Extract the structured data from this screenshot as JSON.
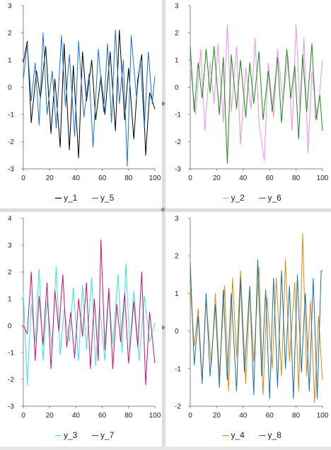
{
  "window": {
    "background": "#e6e6e6",
    "splitter_color": "#dedede",
    "grip_glyph": "◆"
  },
  "chart_data": [
    {
      "type": "line",
      "x": {
        "start": 0,
        "end": 100
      },
      "xlim": [
        0,
        100
      ],
      "ylim": [
        -3,
        3
      ],
      "xticks": [
        0,
        20,
        40,
        60,
        80,
        100
      ],
      "yticks": [
        -3,
        -2,
        -1,
        0,
        1,
        2,
        3
      ],
      "grid": false,
      "legend_position": "bottom",
      "series": [
        {
          "name": "y_1",
          "color": "#000000",
          "peaks": [
            [
              0,
              0.9
            ],
            [
              3,
              1.7
            ],
            [
              6,
              -1.3
            ],
            [
              10,
              0.6
            ],
            [
              13,
              -0.4
            ],
            [
              17,
              1.5
            ],
            [
              21,
              -1.7
            ],
            [
              24,
              0.3
            ],
            [
              28,
              -2.2
            ],
            [
              31,
              1.6
            ],
            [
              35,
              -2.3
            ],
            [
              38,
              0.8
            ],
            [
              42,
              -2.6
            ],
            [
              45,
              1.3
            ],
            [
              48,
              -0.5
            ],
            [
              52,
              1.0
            ],
            [
              55,
              -1.2
            ],
            [
              59,
              0.4
            ],
            [
              62,
              -1.0
            ],
            [
              66,
              1.3
            ],
            [
              70,
              -1.6
            ],
            [
              73,
              2.1
            ],
            [
              77,
              -1.2
            ],
            [
              80,
              0.7
            ],
            [
              84,
              -1.9
            ],
            [
              87,
              0.3
            ],
            [
              90,
              1.2
            ],
            [
              93,
              -2.5
            ],
            [
              96,
              -0.2
            ],
            [
              100,
              -0.8
            ]
          ]
        },
        {
          "name": "y_5",
          "color": "#1a73d2",
          "peaks": [
            [
              0,
              0.3
            ],
            [
              3,
              1.6
            ],
            [
              6,
              -0.5
            ],
            [
              9,
              0.9
            ],
            [
              12,
              -1.4
            ],
            [
              15,
              2.0
            ],
            [
              18,
              -1.0
            ],
            [
              22,
              0.6
            ],
            [
              25,
              -1.5
            ],
            [
              29,
              1.9
            ],
            [
              32,
              -0.7
            ],
            [
              35,
              1.2
            ],
            [
              39,
              -1.8
            ],
            [
              42,
              1.7
            ],
            [
              46,
              -1.1
            ],
            [
              50,
              0.5
            ],
            [
              53,
              -2.2
            ],
            [
              57,
              1.4
            ],
            [
              61,
              -0.9
            ],
            [
              64,
              1.6
            ],
            [
              67,
              -1.3
            ],
            [
              70,
              2.1
            ],
            [
              73,
              -0.6
            ],
            [
              76,
              1.0
            ],
            [
              79,
              -2.9
            ],
            [
              82,
              1.9
            ],
            [
              86,
              -0.4
            ],
            [
              89,
              1.0
            ],
            [
              92,
              -1.5
            ],
            [
              95,
              1.3
            ],
            [
              98,
              -0.6
            ],
            [
              100,
              0.4
            ]
          ]
        }
      ]
    },
    {
      "type": "line",
      "x": {
        "start": 0,
        "end": 100
      },
      "xlim": [
        0,
        100
      ],
      "ylim": [
        -3,
        3
      ],
      "xticks": [
        0,
        20,
        40,
        60,
        80,
        100
      ],
      "yticks": [
        -3,
        -2,
        -1,
        0,
        1,
        2,
        3
      ],
      "grid": false,
      "legend_position": "bottom",
      "series": [
        {
          "name": "y_2",
          "color": "#ee90e8",
          "peaks": [
            [
              0,
              0.8
            ],
            [
              4,
              -1.0
            ],
            [
              8,
              1.4
            ],
            [
              11,
              -1.6
            ],
            [
              15,
              0.9
            ],
            [
              18,
              -0.6
            ],
            [
              21,
              1.6
            ],
            [
              25,
              -1.3
            ],
            [
              28,
              2.3
            ],
            [
              31,
              -0.9
            ],
            [
              35,
              1.5
            ],
            [
              38,
              -2.1
            ],
            [
              42,
              0.7
            ],
            [
              46,
              -0.8
            ],
            [
              49,
              1.8
            ],
            [
              52,
              -1.3
            ],
            [
              56,
              -2.7
            ],
            [
              59,
              0.9
            ],
            [
              63,
              -1.1
            ],
            [
              66,
              1.4
            ],
            [
              70,
              -0.5
            ],
            [
              74,
              1.1
            ],
            [
              77,
              -1.6
            ],
            [
              80,
              2.3
            ],
            [
              83,
              -0.8
            ],
            [
              86,
              1.8
            ],
            [
              89,
              -2.4
            ],
            [
              92,
              0.6
            ],
            [
              96,
              -1.2
            ],
            [
              100,
              1.0
            ]
          ]
        },
        {
          "name": "y_6",
          "color": "#1a8a1a",
          "peaks": [
            [
              0,
              1.5
            ],
            [
              3,
              -0.9
            ],
            [
              6,
              0.9
            ],
            [
              9,
              -0.4
            ],
            [
              12,
              1.4
            ],
            [
              15,
              -0.2
            ],
            [
              18,
              1.5
            ],
            [
              22,
              -1.0
            ],
            [
              25,
              1.1
            ],
            [
              28,
              -2.8
            ],
            [
              31,
              1.2
            ],
            [
              35,
              -0.8
            ],
            [
              38,
              1.0
            ],
            [
              42,
              -1.1
            ],
            [
              45,
              0.9
            ],
            [
              48,
              -0.6
            ],
            [
              52,
              1.3
            ],
            [
              55,
              -1.2
            ],
            [
              59,
              0.6
            ],
            [
              62,
              -0.9
            ],
            [
              66,
              1.1
            ],
            [
              69,
              -1.3
            ],
            [
              73,
              1.4
            ],
            [
              76,
              -0.4
            ],
            [
              79,
              0.8
            ],
            [
              82,
              -1.9
            ],
            [
              85,
              1.2
            ],
            [
              88,
              -0.9
            ],
            [
              92,
              1.6
            ],
            [
              95,
              -1.2
            ],
            [
              98,
              -0.3
            ],
            [
              100,
              -1.6
            ]
          ]
        }
      ]
    },
    {
      "type": "line",
      "x": {
        "start": 0,
        "end": 100
      },
      "xlim": [
        0,
        100
      ],
      "ylim": [
        -3,
        4
      ],
      "xticks": [
        0,
        20,
        40,
        60,
        80,
        100
      ],
      "yticks": [
        -3,
        -2,
        -1,
        0,
        1,
        2,
        3,
        4
      ],
      "grid": false,
      "legend_position": "bottom",
      "series": [
        {
          "name": "y_3",
          "color": "#35e3e3",
          "peaks": [
            [
              0,
              1.2
            ],
            [
              3,
              -2.2
            ],
            [
              6,
              0.8
            ],
            [
              9,
              -0.6
            ],
            [
              12,
              2.1
            ],
            [
              15,
              -1.3
            ],
            [
              18,
              0.9
            ],
            [
              22,
              -0.8
            ],
            [
              25,
              2.2
            ],
            [
              28,
              -1.1
            ],
            [
              31,
              0.6
            ],
            [
              35,
              -0.6
            ],
            [
              38,
              1.4
            ],
            [
              42,
              -1.3
            ],
            [
              45,
              1.5
            ],
            [
              48,
              -0.9
            ],
            [
              52,
              1.8
            ],
            [
              55,
              -1.5
            ],
            [
              58,
              0.7
            ],
            [
              62,
              -1.3
            ],
            [
              65,
              1.2
            ],
            [
              68,
              -0.7
            ],
            [
              72,
              1.9
            ],
            [
              75,
              -1.0
            ],
            [
              78,
              2.3
            ],
            [
              81,
              -0.9
            ],
            [
              84,
              1.3
            ],
            [
              88,
              -1.3
            ],
            [
              92,
              1.1
            ],
            [
              96,
              -0.6
            ],
            [
              100,
              0.1
            ]
          ]
        },
        {
          "name": "y_7",
          "color": "#cc0f6e",
          "peaks": [
            [
              0,
              0.0
            ],
            [
              3,
              -0.3
            ],
            [
              6,
              2.0
            ],
            [
              9,
              -1.3
            ],
            [
              12,
              1.1
            ],
            [
              15,
              -0.7
            ],
            [
              18,
              1.6
            ],
            [
              21,
              -1.6
            ],
            [
              24,
              1.3
            ],
            [
              27,
              -0.2
            ],
            [
              30,
              1.9
            ],
            [
              33,
              -0.8
            ],
            [
              36,
              0.5
            ],
            [
              39,
              -1.2
            ],
            [
              42,
              1.0
            ],
            [
              45,
              -0.4
            ],
            [
              48,
              1.6
            ],
            [
              51,
              -1.6
            ],
            [
              54,
              1.0
            ],
            [
              57,
              -1.3
            ],
            [
              59,
              3.2
            ],
            [
              62,
              -0.9
            ],
            [
              65,
              1.4
            ],
            [
              68,
              -1.6
            ],
            [
              71,
              0.8
            ],
            [
              74,
              -0.6
            ],
            [
              77,
              1.2
            ],
            [
              80,
              -1.4
            ],
            [
              84,
              0.9
            ],
            [
              87,
              -0.8
            ],
            [
              90,
              2.0
            ],
            [
              93,
              -2.2
            ],
            [
              96,
              0.5
            ],
            [
              100,
              -1.4
            ]
          ]
        }
      ]
    },
    {
      "type": "line",
      "x": {
        "start": 0,
        "end": 100
      },
      "xlim": [
        0,
        100
      ],
      "ylim": [
        -2,
        3
      ],
      "xticks": [
        0,
        20,
        40,
        60,
        80,
        100
      ],
      "yticks": [
        -2,
        -1,
        0,
        1,
        2,
        3
      ],
      "grid": false,
      "legend_position": "bottom",
      "series": [
        {
          "name": "y_4",
          "color": "#e5890d",
          "peaks": [
            [
              0,
              1.2
            ],
            [
              3,
              -0.4
            ],
            [
              6,
              0.6
            ],
            [
              9,
              -1.3
            ],
            [
              12,
              0.8
            ],
            [
              16,
              -0.9
            ],
            [
              19,
              1.0
            ],
            [
              22,
              -1.2
            ],
            [
              26,
              1.2
            ],
            [
              29,
              -1.6
            ],
            [
              32,
              1.4
            ],
            [
              35,
              -0.7
            ],
            [
              38,
              1.6
            ],
            [
              42,
              -1.4
            ],
            [
              45,
              1.1
            ],
            [
              48,
              -0.8
            ],
            [
              52,
              1.7
            ],
            [
              55,
              -1.7
            ],
            [
              58,
              0.9
            ],
            [
              62,
              -1.0
            ],
            [
              65,
              1.4
            ],
            [
              69,
              -1.2
            ],
            [
              72,
              1.9
            ],
            [
              75,
              -0.8
            ],
            [
              79,
              1.3
            ],
            [
              82,
              -1.6
            ],
            [
              85,
              2.6
            ],
            [
              88,
              -1.2
            ],
            [
              91,
              0.8
            ],
            [
              94,
              -1.9
            ],
            [
              97,
              0.4
            ],
            [
              100,
              -1.3
            ]
          ]
        },
        {
          "name": "y_8",
          "color": "#1a6fa3",
          "peaks": [
            [
              0,
              1.8
            ],
            [
              3,
              -0.9
            ],
            [
              6,
              0.4
            ],
            [
              9,
              -1.4
            ],
            [
              12,
              1.0
            ],
            [
              15,
              -1.2
            ],
            [
              19,
              0.7
            ],
            [
              22,
              -1.5
            ],
            [
              25,
              1.1
            ],
            [
              28,
              -1.3
            ],
            [
              31,
              1.0
            ],
            [
              35,
              -1.6
            ],
            [
              38,
              1.4
            ],
            [
              41,
              -1.1
            ],
            [
              45,
              1.2
            ],
            [
              48,
              -1.7
            ],
            [
              51,
              1.9
            ],
            [
              54,
              -1.2
            ],
            [
              57,
              1.1
            ],
            [
              60,
              -1.8
            ],
            [
              63,
              1.4
            ],
            [
              66,
              -1.5
            ],
            [
              69,
              1.6
            ],
            [
              72,
              -1.0
            ],
            [
              75,
              1.2
            ],
            [
              78,
              -1.8
            ],
            [
              81,
              1.5
            ],
            [
              84,
              -1.1
            ],
            [
              87,
              1.0
            ],
            [
              90,
              -1.6
            ],
            [
              93,
              1.4
            ],
            [
              96,
              -1.8
            ],
            [
              99,
              1.6
            ],
            [
              100,
              1.6
            ]
          ]
        }
      ]
    }
  ]
}
